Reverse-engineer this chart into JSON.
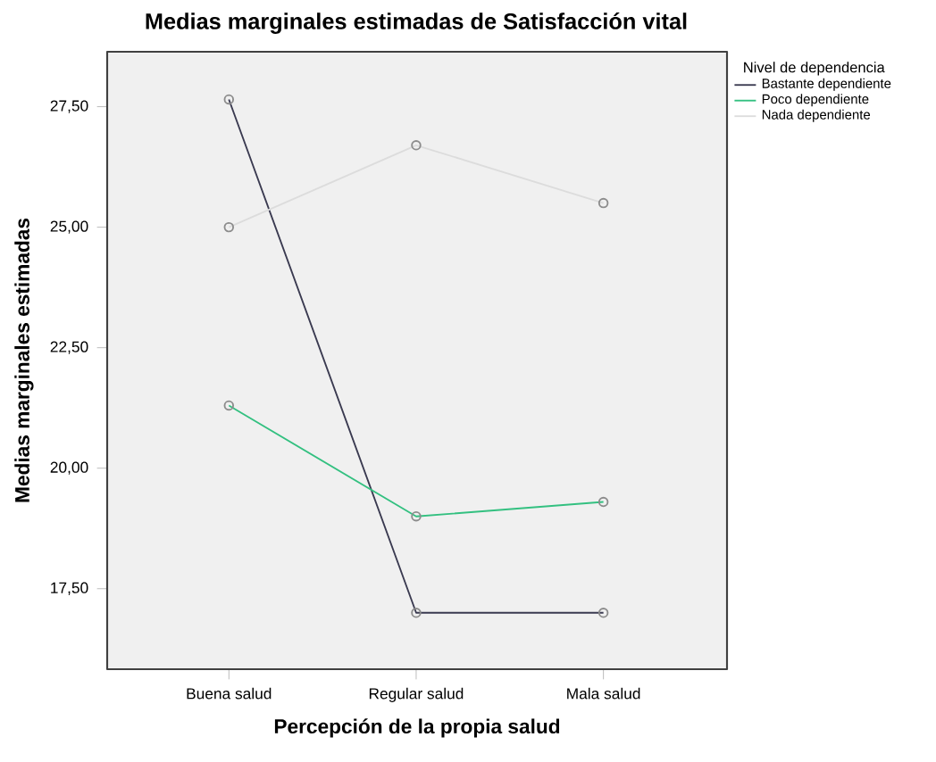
{
  "chart_data": {
    "type": "line",
    "title": "Medias marginales estimadas de Satisfacción vital",
    "xlabel": "Percepción de la propia salud",
    "ylabel": "Medias marginales estimadas",
    "legend_title": "Nivel de dependencia",
    "categories": [
      "Buena salud",
      "Regular salud",
      "Mala salud"
    ],
    "series": [
      {
        "name": "Bastante dependiente",
        "color": "#3a3a50",
        "values": [
          27.65,
          17.0,
          17.0
        ]
      },
      {
        "name": "Poco dependiente",
        "color": "#33c080",
        "values": [
          21.3,
          19.0,
          19.3
        ]
      },
      {
        "name": "Nada dependiente",
        "color": "#dcdcdc",
        "values": [
          25.0,
          26.7,
          25.5
        ]
      }
    ],
    "ylim": [
      15.83,
      28.64
    ],
    "yticks": [
      {
        "value": 17.5,
        "label": "17,50"
      },
      {
        "value": 20,
        "label": "20,00"
      },
      {
        "value": 22.5,
        "label": "22,50"
      },
      {
        "value": 25,
        "label": "25,00"
      },
      {
        "value": 27.5,
        "label": "27,50"
      }
    ],
    "legend": "right",
    "marker": "circle",
    "grid": false
  }
}
